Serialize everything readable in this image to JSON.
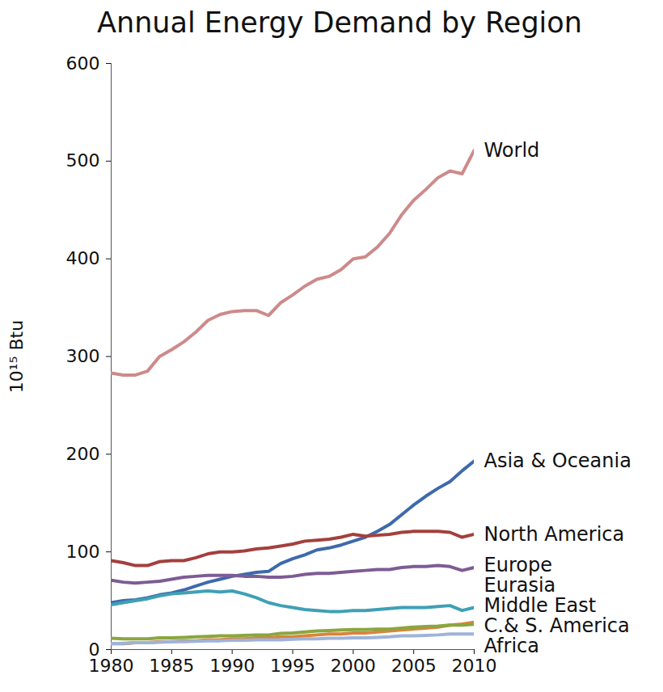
{
  "chart_data": {
    "type": "line",
    "title": "Annual Energy Demand by Region",
    "y_label": "10¹⁵ Btu",
    "x": [
      1980,
      1981,
      1982,
      1983,
      1984,
      1985,
      1986,
      1987,
      1988,
      1989,
      1990,
      1991,
      1992,
      1993,
      1994,
      1995,
      1996,
      1997,
      1998,
      1999,
      2000,
      2001,
      2002,
      2003,
      2004,
      2005,
      2006,
      2007,
      2008,
      2009,
      2010
    ],
    "series": [
      {
        "name": "World",
        "color": "#cd8a8a",
        "values": [
          283,
          281,
          281,
          285,
          300,
          307,
          315,
          325,
          337,
          343,
          346,
          347,
          347,
          342,
          355,
          363,
          372,
          379,
          382,
          389,
          400,
          402,
          412,
          426,
          445,
          460,
          471,
          483,
          490,
          487,
          511
        ]
      },
      {
        "name": "Asia & Oceania",
        "color": "#3d6aab",
        "values": [
          48,
          50,
          51,
          53,
          56,
          58,
          61,
          65,
          69,
          72,
          75,
          77,
          79,
          80,
          88,
          93,
          97,
          102,
          104,
          107,
          111,
          115,
          121,
          128,
          138,
          148,
          157,
          165,
          172,
          183,
          193
        ]
      },
      {
        "name": "North America",
        "color": "#a3403d",
        "values": [
          91,
          89,
          86,
          86,
          90,
          91,
          91,
          94,
          98,
          100,
          100,
          101,
          103,
          104,
          106,
          108,
          111,
          112,
          113,
          115,
          118,
          116,
          117,
          118,
          120,
          121,
          121,
          121,
          120,
          115,
          118
        ]
      },
      {
        "name": "Europe",
        "color": "#7d5c94",
        "values": [
          71,
          69,
          68,
          69,
          70,
          72,
          74,
          75,
          76,
          76,
          76,
          75,
          75,
          74,
          74,
          75,
          77,
          78,
          78,
          79,
          80,
          81,
          82,
          82,
          84,
          85,
          85,
          86,
          85,
          81,
          84
        ]
      },
      {
        "name": "Eurasia",
        "color": "#3fa0b5",
        "values": [
          46,
          48,
          50,
          52,
          55,
          57,
          58,
          59,
          60,
          59,
          60,
          57,
          53,
          48,
          45,
          43,
          41,
          40,
          39,
          39,
          40,
          40,
          41,
          42,
          43,
          43,
          43,
          44,
          45,
          40,
          43
        ]
      },
      {
        "name": "Middle East",
        "color": "#d9853b",
        "values": [
          6,
          6,
          7,
          7,
          8,
          8,
          9,
          9,
          10,
          10,
          11,
          11,
          12,
          12,
          13,
          13,
          14,
          15,
          16,
          16,
          17,
          17,
          18,
          19,
          20,
          21,
          22,
          23,
          25,
          26,
          28
        ]
      },
      {
        "name": "C.& S. America",
        "color": "#8aa63f",
        "values": [
          11.5,
          11,
          11,
          11,
          12,
          12,
          12.5,
          13,
          13.5,
          14,
          14,
          14.5,
          15,
          15,
          16.5,
          17,
          18,
          19,
          19.5,
          20,
          20.5,
          20.5,
          21,
          21,
          22,
          23,
          23.5,
          24,
          25,
          25,
          26
        ]
      },
      {
        "name": "Africa",
        "color": "#9fb3d9",
        "values": [
          6,
          6.5,
          7,
          7,
          7.5,
          8,
          8,
          8.5,
          9,
          9,
          9.5,
          9.5,
          10,
          10,
          10,
          10.5,
          11,
          11,
          11.5,
          11.5,
          12,
          12,
          12.5,
          13,
          14,
          14,
          14.5,
          15,
          16,
          16,
          16
        ]
      }
    ],
    "xlim": [
      1980,
      2010
    ],
    "xticks": [
      1980,
      1985,
      1990,
      1995,
      2000,
      2005,
      2010
    ],
    "ylim": [
      0,
      600
    ],
    "yticks": [
      0,
      100,
      200,
      300,
      400,
      500,
      600
    ],
    "grid": false
  }
}
